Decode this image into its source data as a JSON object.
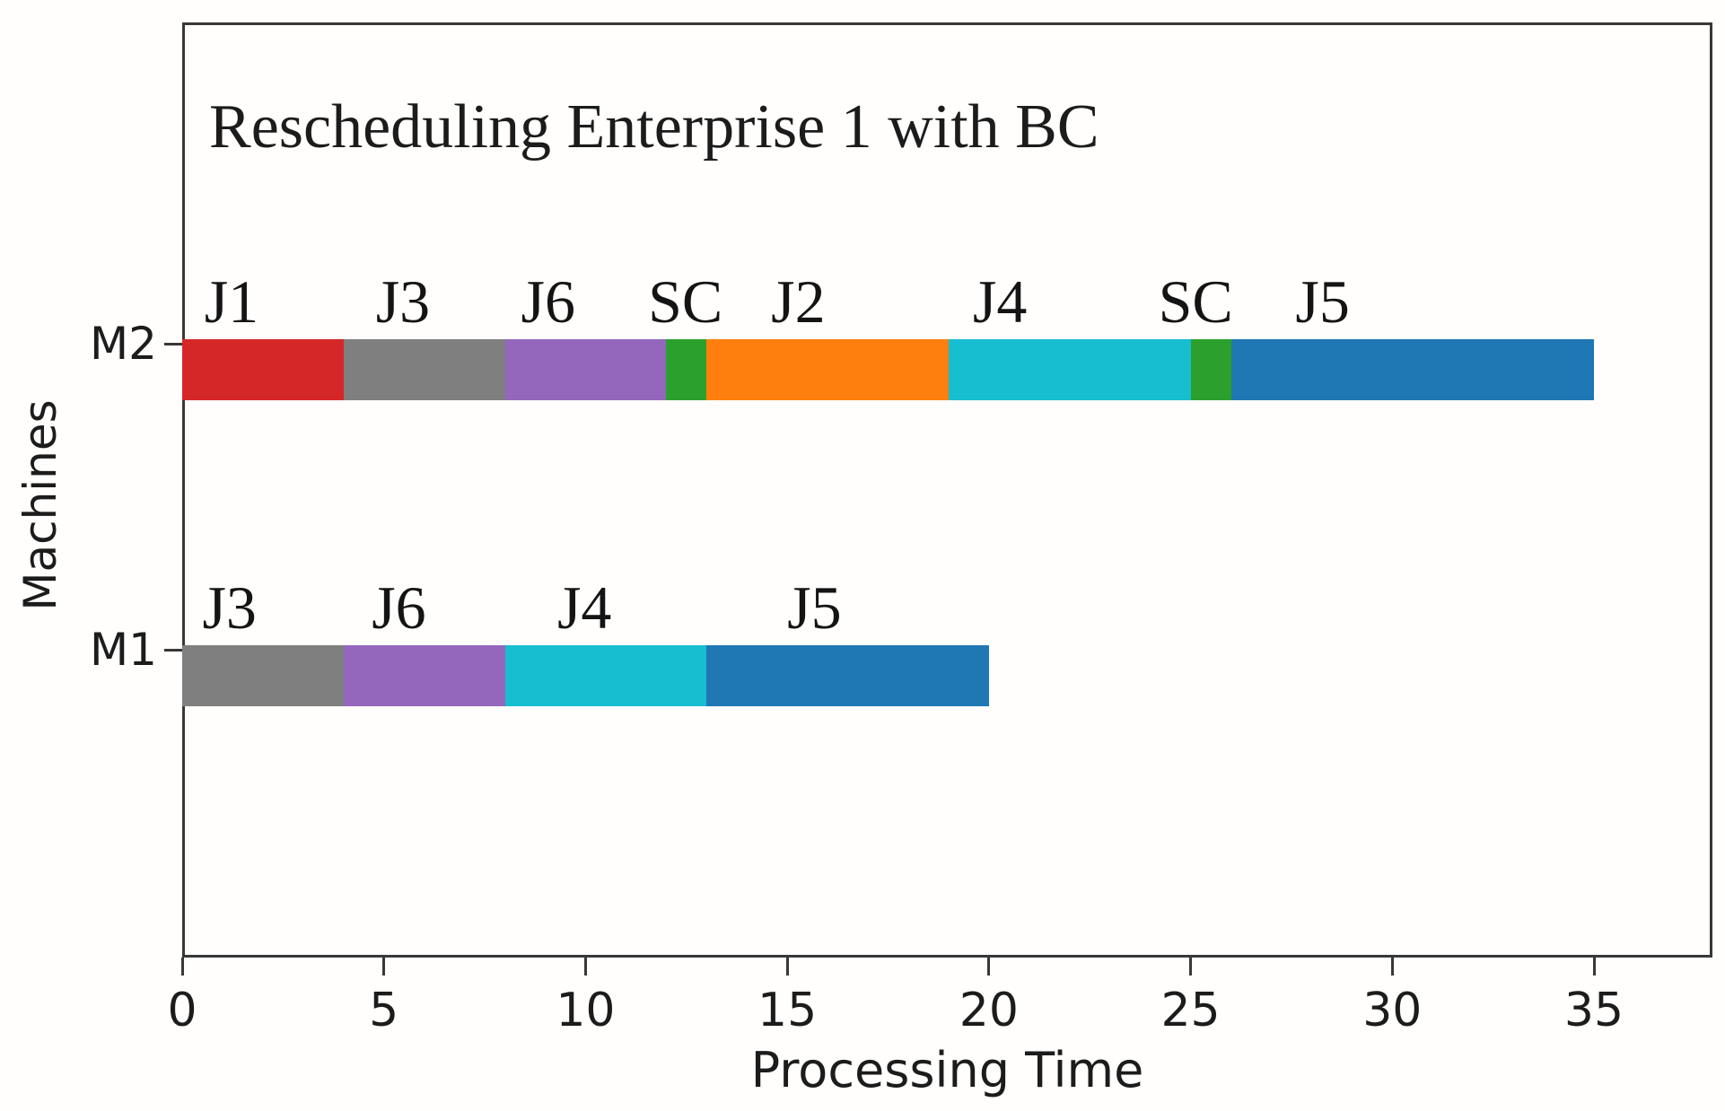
{
  "figure": {
    "title": "Rescheduling Enterprise 1 with BC",
    "xlabel": "Processing Time",
    "ylabel": "Machines"
  },
  "chart_data": {
    "type": "bar",
    "variant": "horizontal-gantt",
    "title": "Rescheduling Enterprise 1 with BC",
    "xlabel": "Processing Time",
    "ylabel": "Machines",
    "xlim": [
      0,
      38
    ],
    "xticks": [
      0,
      5,
      10,
      15,
      20,
      25,
      30,
      35
    ],
    "grid": false,
    "legend": false,
    "job_colors": {
      "J1": "#d62728",
      "J2": "#ff7f0e",
      "J3": "#7f7f7f",
      "J4": "#17becf",
      "J5": "#1f77b4",
      "J6": "#9467bd",
      "SC": "#2ca02c"
    },
    "machines": [
      {
        "name": "M2",
        "segments": [
          {
            "job": "J1",
            "start": 0,
            "end": 4,
            "color": "#d62728",
            "label_x": 0.55
          },
          {
            "job": "J3",
            "start": 4,
            "end": 8,
            "color": "#7f7f7f",
            "label_x": 4.8
          },
          {
            "job": "J6",
            "start": 8,
            "end": 12,
            "color": "#9467bd",
            "label_x": 8.4
          },
          {
            "job": "SC",
            "start": 12,
            "end": 13,
            "color": "#2ca02c",
            "label_x": 11.55
          },
          {
            "job": "J2",
            "start": 13,
            "end": 19,
            "color": "#ff7f0e",
            "label_x": 14.6
          },
          {
            "job": "J4",
            "start": 19,
            "end": 25,
            "color": "#17becf",
            "label_x": 19.6
          },
          {
            "job": "SC",
            "start": 25,
            "end": 26,
            "color": "#2ca02c",
            "label_x": 24.2
          },
          {
            "job": "J5",
            "start": 26,
            "end": 35,
            "color": "#1f77b4",
            "label_x": 27.6
          }
        ]
      },
      {
        "name": "M1",
        "segments": [
          {
            "job": "J3",
            "start": 0,
            "end": 4,
            "color": "#7f7f7f",
            "label_x": 0.5
          },
          {
            "job": "J6",
            "start": 4,
            "end": 8,
            "color": "#9467bd",
            "label_x": 4.7
          },
          {
            "job": "J4",
            "start": 8,
            "end": 13,
            "color": "#17becf",
            "label_x": 9.3
          },
          {
            "job": "J5",
            "start": 13,
            "end": 20,
            "color": "#1f77b4",
            "label_x": 15.0
          }
        ]
      }
    ]
  }
}
